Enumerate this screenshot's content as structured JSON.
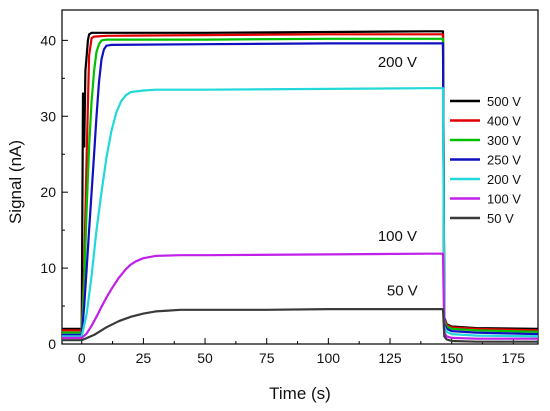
{
  "chart_data": {
    "type": "line",
    "title": "",
    "xlabel": "Time (s)",
    "ylabel": "Signal (nA)",
    "xlim": [
      -8,
      185
    ],
    "ylim": [
      0,
      44
    ],
    "x_ticks": [
      0,
      25,
      50,
      75,
      100,
      125,
      150,
      175
    ],
    "y_ticks": [
      0,
      10,
      20,
      30,
      40
    ],
    "grid": false,
    "legend_position": "right",
    "series": [
      {
        "name": "500 V",
        "color": "#000000",
        "x": [
          -8,
          0,
          0.5,
          1.0,
          1.5,
          2,
          2.5,
          3,
          4,
          5,
          10,
          50,
          100,
          140,
          146.5,
          147,
          148,
          150,
          160,
          185
        ],
        "y": [
          2.0,
          2.0,
          33.0,
          26.0,
          36.0,
          38.0,
          40.0,
          40.8,
          41.0,
          41.0,
          41.0,
          41.0,
          41.1,
          41.2,
          41.2,
          3.5,
          2.6,
          2.3,
          2.1,
          2.0
        ]
      },
      {
        "name": "400 V",
        "color": "#e00000",
        "x": [
          -8,
          0,
          1,
          2,
          3,
          4,
          5,
          10,
          50,
          100,
          140,
          146.5,
          147,
          148,
          150,
          160,
          185
        ],
        "y": [
          1.8,
          1.8,
          10.0,
          25.0,
          38.0,
          40.3,
          40.5,
          40.6,
          40.7,
          40.8,
          40.8,
          40.8,
          3.3,
          2.5,
          2.2,
          2.0,
          1.8
        ]
      },
      {
        "name": "300 V",
        "color": "#00c000",
        "x": [
          -8,
          0,
          1,
          2,
          3,
          4,
          5,
          6,
          7,
          8,
          10,
          50,
          100,
          140,
          146.5,
          147,
          148,
          150,
          160,
          185
        ],
        "y": [
          1.5,
          1.5,
          8.0,
          18.0,
          26.0,
          32.0,
          36.0,
          38.5,
          39.5,
          40.0,
          40.1,
          40.1,
          40.2,
          40.2,
          40.2,
          3.0,
          2.3,
          2.0,
          1.8,
          1.6
        ]
      },
      {
        "name": "250 V",
        "color": "#1010c0",
        "x": [
          -8,
          0,
          1,
          2,
          3,
          4,
          5,
          6,
          7,
          8,
          9,
          10,
          12,
          50,
          100,
          140,
          146.5,
          147,
          148,
          150,
          160,
          185
        ],
        "y": [
          1.2,
          1.2,
          5.0,
          10.0,
          15.0,
          20.0,
          25.0,
          30.0,
          34.5,
          37.5,
          38.8,
          39.3,
          39.4,
          39.5,
          39.6,
          39.6,
          39.6,
          2.7,
          2.0,
          1.7,
          1.5,
          1.3
        ]
      },
      {
        "name": "200 V",
        "color": "#22d8d8",
        "x": [
          -8,
          0,
          2,
          4,
          6,
          8,
          10,
          12,
          14,
          16,
          18,
          20,
          25,
          30,
          50,
          100,
          140,
          146.5,
          147,
          148,
          150,
          160,
          185
        ],
        "y": [
          1.0,
          1.0,
          4.0,
          9.0,
          15.0,
          20.0,
          24.5,
          28.0,
          30.5,
          32.0,
          32.8,
          33.2,
          33.4,
          33.5,
          33.5,
          33.6,
          33.7,
          33.7,
          2.3,
          1.6,
          1.3,
          1.1,
          1.0
        ]
      },
      {
        "name": "100 V",
        "color": "#c020e8",
        "x": [
          -8,
          0,
          2,
          4,
          6,
          8,
          10,
          12,
          15,
          18,
          20,
          22,
          25,
          30,
          40,
          50,
          100,
          140,
          146.5,
          147,
          148,
          150,
          160,
          185
        ],
        "y": [
          0.8,
          0.8,
          1.4,
          2.4,
          3.6,
          4.9,
          6.1,
          7.2,
          8.7,
          9.9,
          10.5,
          10.9,
          11.3,
          11.6,
          11.7,
          11.7,
          11.8,
          11.9,
          11.9,
          1.5,
          1.0,
          0.8,
          0.7,
          0.7
        ]
      },
      {
        "name": "50 V",
        "color": "#3a3a3a",
        "x": [
          -8,
          0,
          5,
          10,
          15,
          20,
          25,
          30,
          35,
          40,
          50,
          75,
          100,
          125,
          140,
          146.5,
          147,
          148,
          150,
          160,
          185
        ],
        "y": [
          0.5,
          0.5,
          1.2,
          2.2,
          3.0,
          3.6,
          4.0,
          4.3,
          4.4,
          4.5,
          4.5,
          4.5,
          4.6,
          4.6,
          4.6,
          4.6,
          1.0,
          0.6,
          0.4,
          0.3,
          0.3
        ]
      }
    ],
    "annotations": [
      {
        "text": "200 V",
        "x": 128,
        "y": 36.5
      },
      {
        "text": "100 V",
        "x": 128,
        "y": 13.6
      },
      {
        "text": "50 V",
        "x": 130,
        "y": 6.4
      }
    ]
  }
}
